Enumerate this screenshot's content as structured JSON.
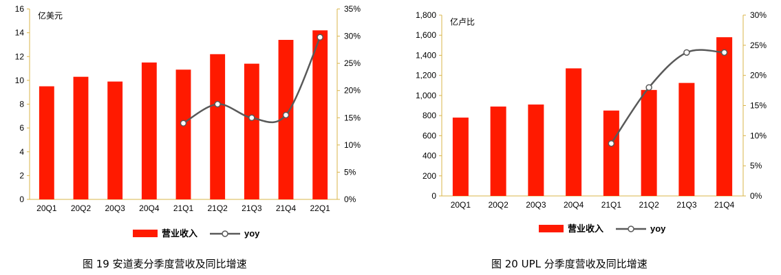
{
  "colors": {
    "bar": "#ff1a00",
    "line": "#595959",
    "axis": "#d9b44a",
    "text": "#000000"
  },
  "captions": {
    "left": "图 19  安道麦分季度营收及同比增速",
    "right": "图 20  UPL 分季度营收及同比增速"
  },
  "chart_data": [
    {
      "type": "bar",
      "unit_label": "亿美元",
      "categories": [
        "20Q1",
        "20Q2",
        "20Q3",
        "20Q4",
        "21Q1",
        "21Q2",
        "21Q3",
        "21Q4",
        "22Q1"
      ],
      "series": [
        {
          "name": "营业收入",
          "type": "bar",
          "axis": "left",
          "values": [
            9.5,
            10.3,
            9.9,
            11.5,
            10.9,
            12.2,
            11.4,
            13.4,
            14.2
          ]
        },
        {
          "name": "yoy",
          "type": "line",
          "axis": "right",
          "values": [
            null,
            null,
            null,
            null,
            14.0,
            17.5,
            15.0,
            15.5,
            29.8
          ]
        }
      ],
      "y_left": {
        "min": 0,
        "max": 16,
        "ticks": [
          0,
          2,
          4,
          6,
          8,
          10,
          12,
          14,
          16
        ]
      },
      "y_right": {
        "min": 0,
        "max": 35,
        "ticks": [
          0,
          5,
          10,
          15,
          20,
          25,
          30,
          35
        ],
        "suffix": "%"
      },
      "legend_position": "bottom"
    },
    {
      "type": "bar",
      "unit_label": "亿卢比",
      "categories": [
        "20Q1",
        "20Q2",
        "20Q3",
        "20Q4",
        "21Q1",
        "21Q2",
        "21Q3",
        "21Q4"
      ],
      "series": [
        {
          "name": "营业收入",
          "type": "bar",
          "axis": "left",
          "values": [
            780,
            890,
            910,
            1270,
            850,
            1055,
            1125,
            1580
          ]
        },
        {
          "name": "yoy",
          "type": "line",
          "axis": "right",
          "values": [
            null,
            null,
            null,
            null,
            8.7,
            18.0,
            23.8,
            23.8
          ]
        }
      ],
      "y_left": {
        "min": 0,
        "max": 1800,
        "ticks": [
          0,
          200,
          400,
          600,
          800,
          1000,
          1200,
          1400,
          1600,
          1800
        ],
        "thousands": true
      },
      "y_right": {
        "min": 0,
        "max": 30,
        "ticks": [
          0,
          5,
          10,
          15,
          20,
          25,
          30
        ],
        "suffix": "%"
      },
      "legend_position": "bottom"
    }
  ]
}
